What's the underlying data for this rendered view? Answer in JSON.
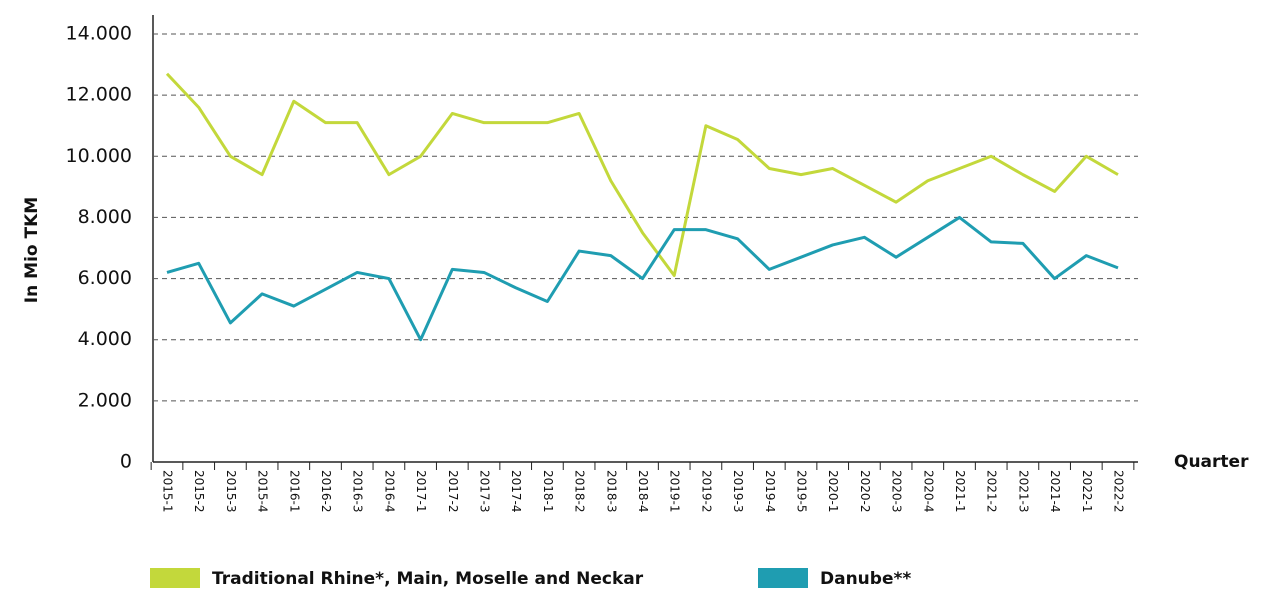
{
  "chart_data": {
    "type": "line",
    "y_label": "In Mio TKM",
    "x_label": "Quarter",
    "categories": [
      "2015-1",
      "2015-2",
      "2015-3",
      "2015-4",
      "2016-1",
      "2016-2",
      "2016-3",
      "2016-4",
      "2017-1",
      "2017-2",
      "2017-3",
      "2017-4",
      "2018-1",
      "2018-2",
      "2018-3",
      "2018-4",
      "2019-1",
      "2019-2",
      "2019-3",
      "2019-4",
      "2019-5",
      "2020-1",
      "2020-2",
      "2020-3",
      "2020-4",
      "2021-1",
      "2021-2",
      "2021-3",
      "2021-4",
      "2022-1",
      "2022-2"
    ],
    "series": [
      {
        "name": "Traditional Rhine*, Main, Moselle and Neckar",
        "color": "#c3d83b",
        "values": [
          12700,
          11600,
          10000,
          9400,
          11800,
          11100,
          11100,
          9400,
          10000,
          11400,
          11100,
          11100,
          11100,
          11400,
          9200,
          7500,
          6100,
          11000,
          10550,
          9600,
          9400,
          9600,
          9050,
          8500,
          9200,
          9600,
          10000,
          9400,
          8850,
          10000,
          9400
        ]
      },
      {
        "name": "Danube**",
        "color": "#1f9db1",
        "values": [
          6200,
          6500,
          4550,
          5500,
          5100,
          5650,
          6200,
          6000,
          4000,
          6300,
          6200,
          5700,
          5250,
          6900,
          6750,
          6000,
          7600,
          7600,
          7300,
          6300,
          6700,
          7100,
          7350,
          6700,
          7350,
          8000,
          7200,
          7150,
          6000,
          6750,
          6350
        ]
      }
    ],
    "ylim": [
      0,
      14000
    ],
    "yticks": [
      0,
      {
        "value": 2000,
        "label": "2.000"
      },
      {
        "value": 4000,
        "label": "4.000"
      },
      {
        "value": 6000,
        "label": "6.000"
      },
      {
        "value": 8000,
        "label": "8.000"
      },
      {
        "value": 10000,
        "label": "10.000"
      },
      {
        "value": 12000,
        "label": "12.000"
      },
      {
        "value": 14000,
        "label": "14.000"
      }
    ],
    "grid": true,
    "legend": "bottom"
  }
}
